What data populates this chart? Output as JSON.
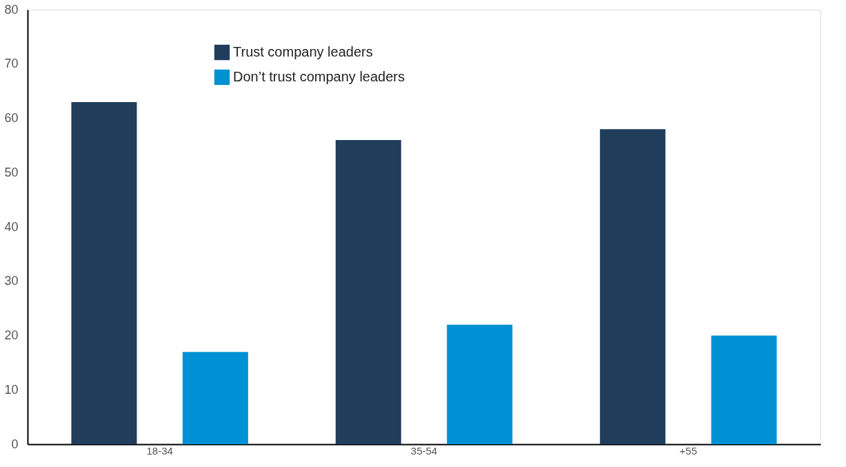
{
  "chart_data": {
    "type": "bar",
    "categories": [
      "18-34",
      "35-54",
      "+55"
    ],
    "series": [
      {
        "name": "Trust company leaders",
        "color": "#203e5c",
        "values": [
          63,
          56,
          58
        ]
      },
      {
        "name": "Don’t trust company leaders",
        "color": "#0090d4",
        "values": [
          17,
          22,
          20
        ]
      }
    ],
    "ylim": [
      0,
      80
    ],
    "yticks": [
      0,
      10,
      20,
      30,
      40,
      50,
      60,
      70,
      80
    ],
    "grid": false,
    "legend": "top left"
  }
}
